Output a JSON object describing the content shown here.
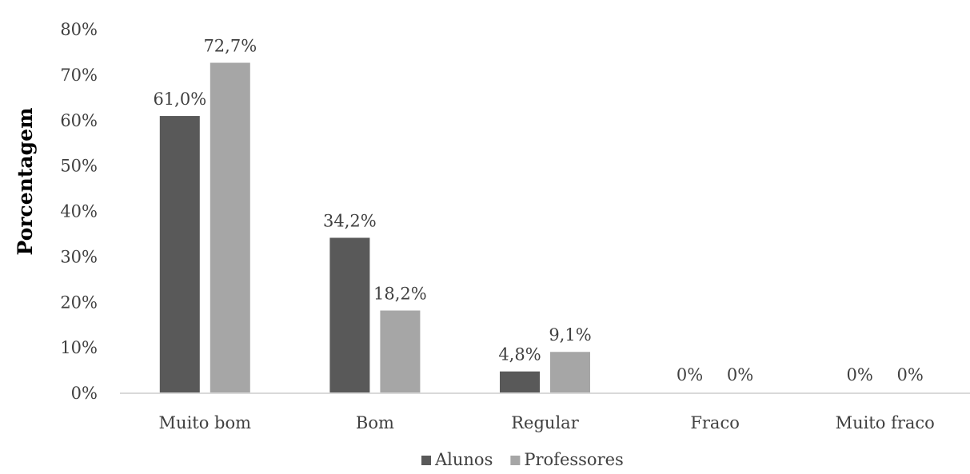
{
  "chart_data": {
    "type": "bar",
    "title": "",
    "xlabel": "",
    "ylabel": "Porcentagem",
    "ylim": [
      0,
      80
    ],
    "yticks": [
      "0%",
      "10%",
      "20%",
      "30%",
      "40%",
      "50%",
      "60%",
      "70%",
      "80%"
    ],
    "categories": [
      "Muito bom",
      "Bom",
      "Regular",
      "Fraco",
      "Muito fraco"
    ],
    "series": [
      {
        "name": "Alunos",
        "color": "#595959",
        "values": [
          61.0,
          34.2,
          4.8,
          0,
          0
        ],
        "labels": [
          "61,0%",
          "34,2%",
          "4,8%",
          "0%",
          "0%"
        ]
      },
      {
        "name": "Professores",
        "color": "#a6a6a6",
        "values": [
          72.7,
          18.2,
          9.1,
          0,
          0
        ],
        "labels": [
          "72,7%",
          "18,2%",
          "9,1%",
          "0%",
          "0%"
        ]
      }
    ],
    "grid": false,
    "legend": "bottom"
  }
}
